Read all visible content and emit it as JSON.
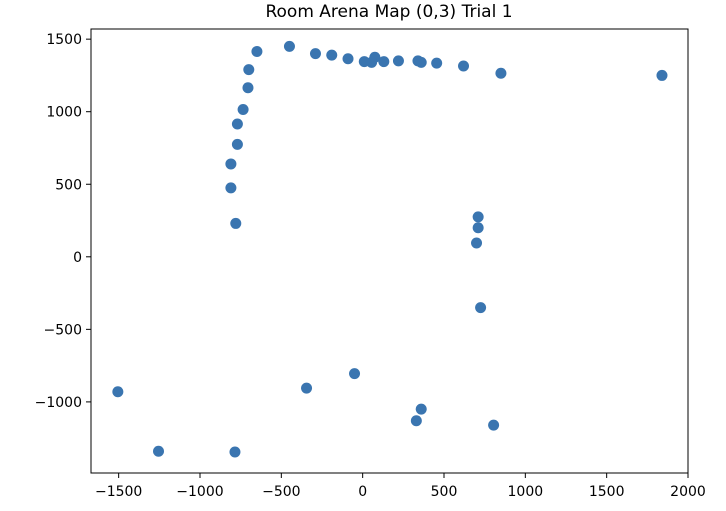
{
  "chart_data": {
    "type": "scatter",
    "title": "Room Arena Map (0,3) Trial 1",
    "xlabel": "",
    "ylabel": "",
    "xlim": [
      -1670,
      2000
    ],
    "ylim": [
      -1490,
      1570
    ],
    "xticks": [
      -1500,
      -1000,
      -500,
      0,
      500,
      1000,
      1500,
      2000
    ],
    "yticks": [
      -1000,
      -500,
      0,
      500,
      1000,
      1500
    ],
    "xtick_labels": [
      "−1500",
      "−1000",
      "−500",
      "0",
      "500",
      "1000",
      "1500",
      "2000"
    ],
    "ytick_labels": [
      "−1000",
      "−500",
      "0",
      "500",
      "1000",
      "1500"
    ],
    "grid": false,
    "marker_color": "#3a75b0",
    "points": [
      {
        "x": -450,
        "y": 1450
      },
      {
        "x": -650,
        "y": 1415
      },
      {
        "x": -290,
        "y": 1400
      },
      {
        "x": -190,
        "y": 1390
      },
      {
        "x": -90,
        "y": 1365
      },
      {
        "x": 10,
        "y": 1345
      },
      {
        "x": 75,
        "y": 1375
      },
      {
        "x": 55,
        "y": 1340
      },
      {
        "x": 130,
        "y": 1345
      },
      {
        "x": 220,
        "y": 1350
      },
      {
        "x": 340,
        "y": 1350
      },
      {
        "x": 360,
        "y": 1340
      },
      {
        "x": 455,
        "y": 1335
      },
      {
        "x": 620,
        "y": 1315
      },
      {
        "x": 850,
        "y": 1265
      },
      {
        "x": 1840,
        "y": 1250
      },
      {
        "x": -700,
        "y": 1290
      },
      {
        "x": -705,
        "y": 1165
      },
      {
        "x": -735,
        "y": 1015
      },
      {
        "x": -770,
        "y": 915
      },
      {
        "x": -770,
        "y": 775
      },
      {
        "x": -810,
        "y": 640
      },
      {
        "x": -810,
        "y": 475
      },
      {
        "x": -780,
        "y": 230
      },
      {
        "x": 710,
        "y": 275
      },
      {
        "x": 710,
        "y": 200
      },
      {
        "x": 700,
        "y": 95
      },
      {
        "x": 725,
        "y": -350
      },
      {
        "x": -50,
        "y": -805
      },
      {
        "x": -345,
        "y": -905
      },
      {
        "x": 360,
        "y": -1050
      },
      {
        "x": 330,
        "y": -1130
      },
      {
        "x": 805,
        "y": -1160
      },
      {
        "x": -1505,
        "y": -930
      },
      {
        "x": -1255,
        "y": -1340
      },
      {
        "x": -785,
        "y": -1345
      }
    ]
  }
}
